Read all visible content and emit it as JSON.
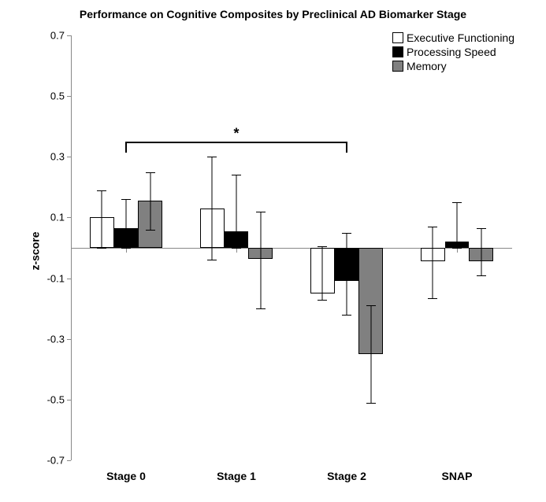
{
  "chart": {
    "type": "bar",
    "title": "Performance on Cognitive Composites by Preclinical AD Biomarker Stage",
    "title_fontsize": 14,
    "ylabel": "z-score",
    "label_fontsize": 14,
    "ylim": [
      -0.7,
      0.7
    ],
    "yticks": [
      -0.7,
      -0.5,
      -0.3,
      -0.1,
      0.1,
      0.3,
      0.5,
      0.7
    ],
    "ytick_labels": [
      "-0.7",
      "-0.5",
      "-0.3",
      "-0.1",
      "0.1",
      "0.3",
      "0.5",
      "0.7"
    ],
    "categories": [
      "Stage 0",
      "Stage 1",
      "Stage 2",
      "SNAP"
    ],
    "series": [
      {
        "name": "Executive Functioning",
        "color": "#ffffff",
        "values": [
          0.1,
          0.13,
          -0.15,
          -0.045
        ],
        "err_low": [
          0.1,
          0.17,
          0.02,
          0.12
        ],
        "err_high": [
          0.09,
          0.17,
          0.155,
          0.115
        ]
      },
      {
        "name": "Processing Speed",
        "color": "#000000",
        "values": [
          0.065,
          0.055,
          -0.11,
          0.02
        ],
        "err_low": [
          0.065,
          0.055,
          0.11,
          0.02
        ],
        "err_high": [
          0.095,
          0.185,
          0.16,
          0.13
        ]
      },
      {
        "name": "Memory",
        "color": "#808080",
        "values": [
          0.155,
          -0.035,
          -0.35,
          -0.045
        ],
        "err_low": [
          0.095,
          0.165,
          0.16,
          0.045
        ],
        "err_high": [
          0.095,
          0.155,
          0.16,
          0.11
        ]
      }
    ],
    "bar_width": 0.22,
    "group_gap": 0.34,
    "background_color": "#ffffff",
    "axis_color": "#888888",
    "errorbar_color": "#000000",
    "cap_width": 12,
    "significance": {
      "from_group": 0,
      "to_group": 2,
      "y": 0.35,
      "label": "*"
    },
    "legend_position": "top-right",
    "font_family": "Arial"
  }
}
